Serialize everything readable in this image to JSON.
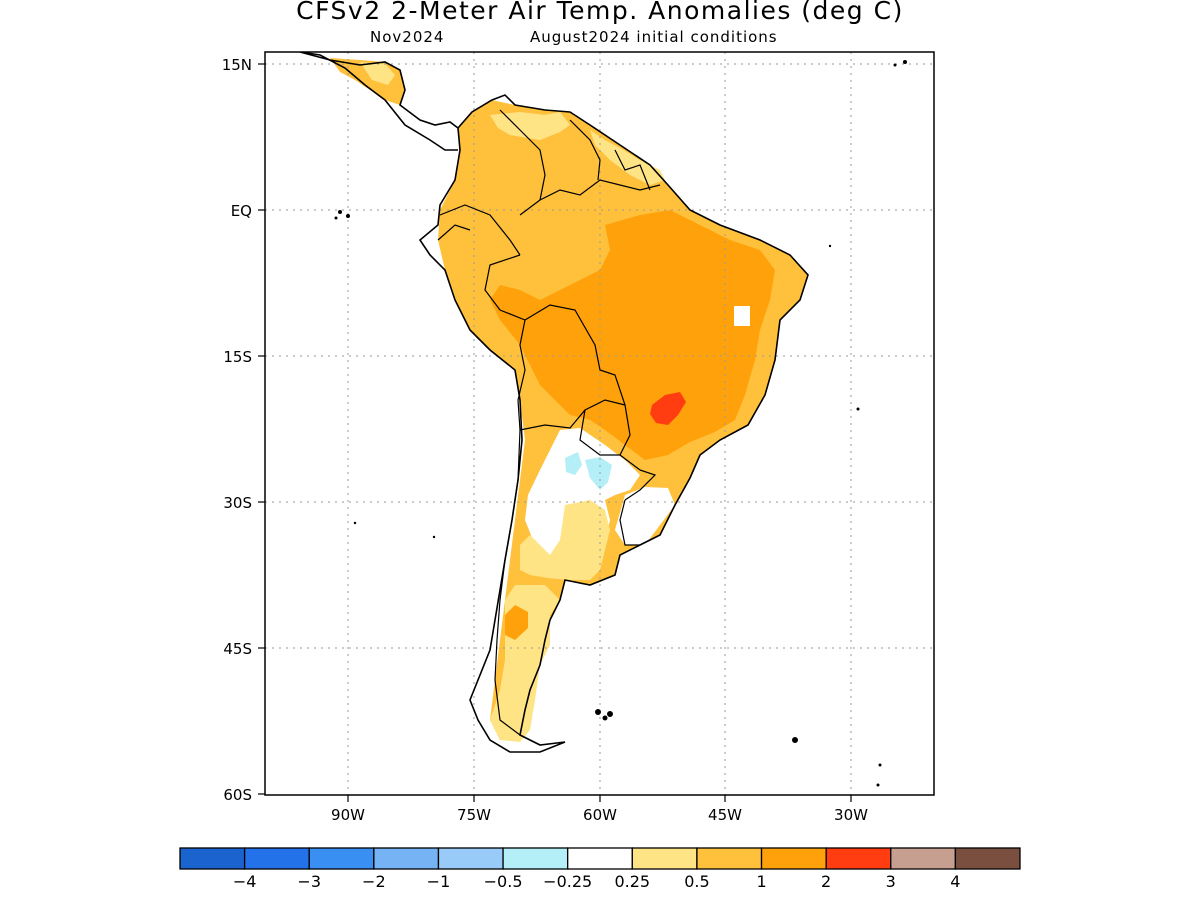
{
  "header": {
    "title": "CFSv2 2-Meter Air Temp. Anomalies (deg C)",
    "month": "Nov2024",
    "init": "August2024 initial conditions"
  },
  "axes": {
    "lat_labels": [
      "15N",
      "EQ",
      "15S",
      "30S",
      "45S",
      "60S"
    ],
    "lon_labels": [
      "90W",
      "75W",
      "60W",
      "45W",
      "30W"
    ]
  },
  "colorbar": {
    "colors": [
      "#1b63cf",
      "#2472ea",
      "#3a90f2",
      "#76b3f4",
      "#98cbf7",
      "#b4eef7",
      "#ffffff",
      "#ffe486",
      "#ffc13c",
      "#ffa10a",
      "#ff3d10",
      "#c79f90",
      "#7a4f40"
    ],
    "labels": [
      "−4",
      "−3",
      "−2",
      "−1",
      "−0.5",
      "−0.25",
      "0.25",
      "0.5",
      "1",
      "2",
      "3",
      "4"
    ]
  },
  "anomaly_regions": [
    {
      "name": "widespread 0.5 to 1",
      "category": "0.5 to 1",
      "color": "#ffc13c"
    },
    {
      "name": "central Brazil 1 to 2",
      "category": "1 to 2",
      "color": "#ffa10a"
    },
    {
      "name": "southern Brazil 2 to 3",
      "category": "2 to 3",
      "color": "#ff3d10"
    },
    {
      "name": "northern Venezuela and southern Argentina 0.25 to 0.5",
      "category": "0.25 to 0.5",
      "color": "#ffe486"
    },
    {
      "name": "northern Argentina near-normal",
      "category": "-0.25 to 0.25",
      "color": "#ffffff"
    },
    {
      "name": "Chaco -0.5 to -0.25",
      "category": "-0.5 to -0.25",
      "color": "#b4eef7"
    }
  ]
}
